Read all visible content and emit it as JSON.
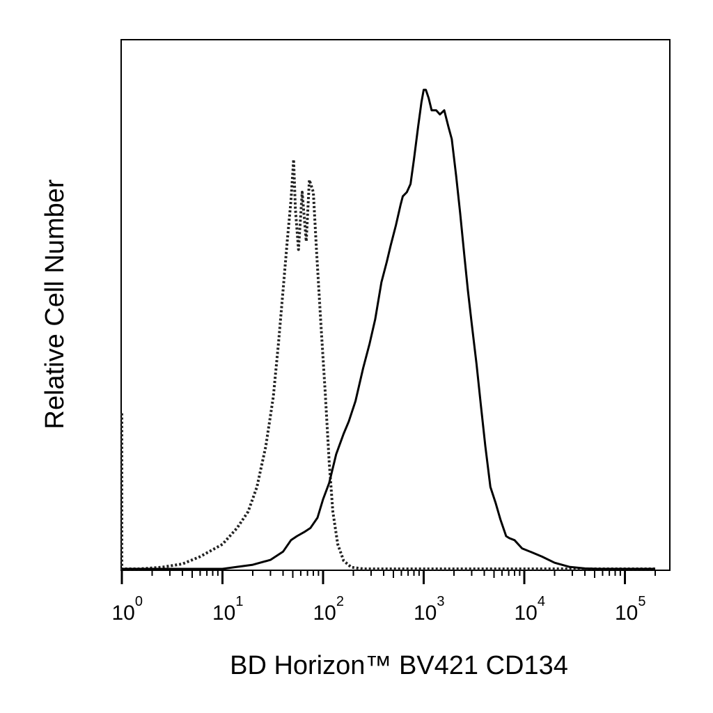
{
  "chart_data": {
    "type": "line",
    "title": "",
    "xlabel": "BD Horizon™ BV421 CD134",
    "ylabel": "Relative Cell Number",
    "x_scale": "log",
    "xlim": [
      0.6,
      200000
    ],
    "ylim": [
      0,
      1.16
    ],
    "x_ticks": [
      {
        "base": "10",
        "exp": "0",
        "value": 1
      },
      {
        "base": "10",
        "exp": "1",
        "value": 10
      },
      {
        "base": "10",
        "exp": "2",
        "value": 100
      },
      {
        "base": "10",
        "exp": "3",
        "value": 1000
      },
      {
        "base": "10",
        "exp": "4",
        "value": 10000
      },
      {
        "base": "10",
        "exp": "5",
        "value": 100000
      }
    ],
    "grid": false,
    "legend": "none",
    "series": [
      {
        "style": "dotted",
        "color": "#222222",
        "points": [
          [
            0.6,
            0.38
          ],
          [
            0.62,
            0.12
          ],
          [
            0.65,
            0.03
          ],
          [
            0.7,
            0.01
          ],
          [
            0.8,
            0.0
          ],
          [
            1.5,
            0.0
          ],
          [
            2.5,
            0.004
          ],
          [
            4,
            0.012
          ],
          [
            6,
            0.03
          ],
          [
            10,
            0.06
          ],
          [
            14,
            0.1
          ],
          [
            18,
            0.14
          ],
          [
            22,
            0.2
          ],
          [
            27,
            0.3
          ],
          [
            32,
            0.42
          ],
          [
            36,
            0.55
          ],
          [
            40,
            0.68
          ],
          [
            44,
            0.8
          ],
          [
            48,
            0.9
          ],
          [
            51,
            1.0
          ],
          [
            53,
            0.88
          ],
          [
            57,
            0.78
          ],
          [
            62,
            0.92
          ],
          [
            68,
            0.8
          ],
          [
            73,
            0.95
          ],
          [
            80,
            0.92
          ],
          [
            86,
            0.78
          ],
          [
            95,
            0.6
          ],
          [
            105,
            0.43
          ],
          [
            115,
            0.26
          ],
          [
            125,
            0.14
          ],
          [
            140,
            0.06
          ],
          [
            160,
            0.02
          ],
          [
            190,
            0.004
          ],
          [
            250,
            0.0
          ],
          [
            1000,
            0.0
          ],
          [
            100000,
            0.0
          ],
          [
            200000,
            0.0
          ]
        ]
      },
      {
        "style": "solid",
        "color": "#000000",
        "points": [
          [
            0.6,
            0.0
          ],
          [
            10,
            0.0
          ],
          [
            14,
            0.005
          ],
          [
            20,
            0.01
          ],
          [
            30,
            0.022
          ],
          [
            40,
            0.042
          ],
          [
            48,
            0.07
          ],
          [
            55,
            0.08
          ],
          [
            65,
            0.09
          ],
          [
            75,
            0.1
          ],
          [
            88,
            0.125
          ],
          [
            100,
            0.17
          ],
          [
            115,
            0.21
          ],
          [
            135,
            0.28
          ],
          [
            160,
            0.33
          ],
          [
            180,
            0.36
          ],
          [
            210,
            0.41
          ],
          [
            250,
            0.49
          ],
          [
            290,
            0.55
          ],
          [
            330,
            0.61
          ],
          [
            380,
            0.7
          ],
          [
            430,
            0.75
          ],
          [
            470,
            0.79
          ],
          [
            530,
            0.84
          ],
          [
            590,
            0.89
          ],
          [
            620,
            0.91
          ],
          [
            680,
            0.92
          ],
          [
            740,
            0.94
          ],
          [
            800,
            1.0
          ],
          [
            880,
            1.08
          ],
          [
            950,
            1.14
          ],
          [
            1000,
            1.17
          ],
          [
            1050,
            1.17
          ],
          [
            1120,
            1.15
          ],
          [
            1200,
            1.12
          ],
          [
            1330,
            1.12
          ],
          [
            1450,
            1.11
          ],
          [
            1600,
            1.12
          ],
          [
            1760,
            1.08
          ],
          [
            1900,
            1.05
          ],
          [
            2100,
            0.96
          ],
          [
            2300,
            0.87
          ],
          [
            2550,
            0.76
          ],
          [
            2750,
            0.68
          ],
          [
            3000,
            0.6
          ],
          [
            3350,
            0.5
          ],
          [
            3700,
            0.4
          ],
          [
            4100,
            0.3
          ],
          [
            4600,
            0.2
          ],
          [
            5200,
            0.16
          ],
          [
            5800,
            0.12
          ],
          [
            6600,
            0.08
          ],
          [
            7100,
            0.075
          ],
          [
            8000,
            0.07
          ],
          [
            9500,
            0.05
          ],
          [
            12000,
            0.04
          ],
          [
            15000,
            0.03
          ],
          [
            20000,
            0.015
          ],
          [
            28000,
            0.005
          ],
          [
            40000,
            0.001
          ],
          [
            55000,
            0.0
          ],
          [
            200000,
            0.0
          ]
        ]
      }
    ]
  }
}
